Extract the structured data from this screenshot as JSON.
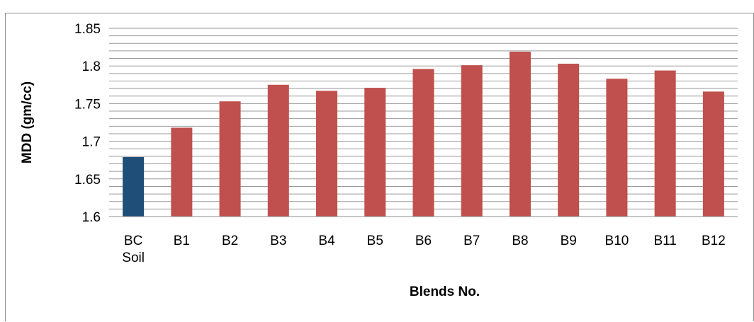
{
  "chart_data": {
    "type": "bar",
    "categories": [
      "BC Soil",
      "B1",
      "B2",
      "B3",
      "B4",
      "B5",
      "B6",
      "B7",
      "B8",
      "B9",
      "B10",
      "B11",
      "B12"
    ],
    "category_lines": [
      [
        "BC",
        "Soil"
      ],
      [
        "B1"
      ],
      [
        "B2"
      ],
      [
        "B3"
      ],
      [
        "B4"
      ],
      [
        "B5"
      ],
      [
        "B6"
      ],
      [
        "B7"
      ],
      [
        "B8"
      ],
      [
        "B9"
      ],
      [
        "B10"
      ],
      [
        "B11"
      ],
      [
        "B12"
      ]
    ],
    "values": [
      1.679,
      1.718,
      1.753,
      1.775,
      1.767,
      1.771,
      1.796,
      1.801,
      1.819,
      1.803,
      1.783,
      1.794,
      1.766
    ],
    "bar_colors": [
      "#1f4e79",
      "#c0504d",
      "#c0504d",
      "#c0504d",
      "#c0504d",
      "#c0504d",
      "#c0504d",
      "#c0504d",
      "#c0504d",
      "#c0504d",
      "#c0504d",
      "#c0504d",
      "#c0504d"
    ],
    "xlabel": "Blends No.",
    "ylabel": "MDD (gm/cc)",
    "ylim": [
      1.6,
      1.85
    ],
    "yticks": [
      "1.6",
      "1.65",
      "1.7",
      "1.75",
      "1.8",
      "1.85"
    ],
    "minor_gridline_step": 0.01,
    "grid": true,
    "legend": "none"
  }
}
